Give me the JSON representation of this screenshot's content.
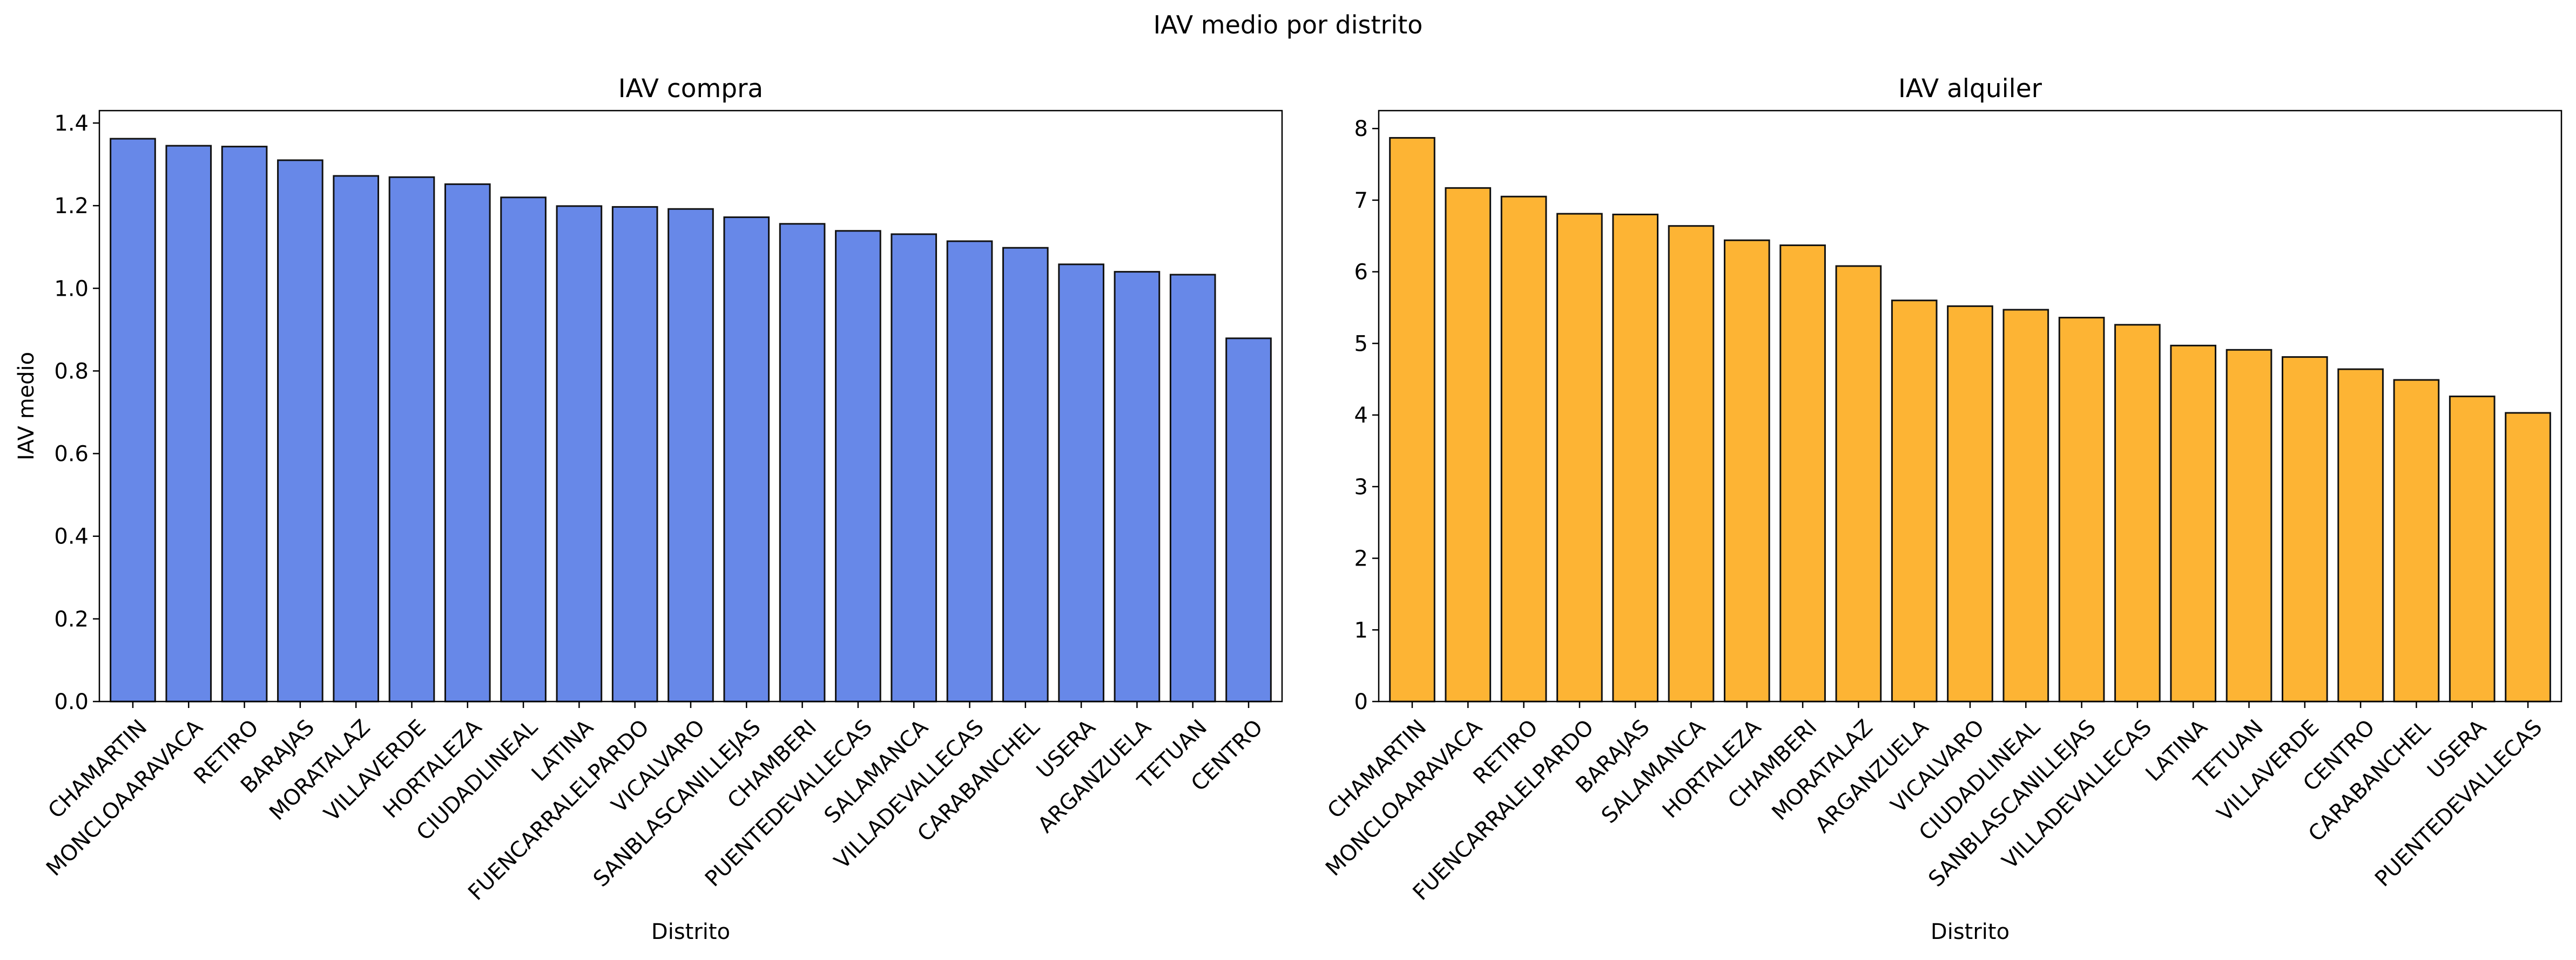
{
  "suptitle": "IAV medio por distrito",
  "colors": {
    "compra_bar": "#6788e8",
    "alquiler_bar": "#fdb434",
    "edge": "#111111",
    "axis": "#000000"
  },
  "chart_data": [
    {
      "type": "bar",
      "title": "IAV compra",
      "xlabel": "Distrito",
      "ylabel": "IAV medio",
      "ylim": [
        0,
        1.43
      ],
      "yticks": [
        0.0,
        0.2,
        0.4,
        0.6,
        0.8,
        1.0,
        1.2,
        1.4
      ],
      "ytick_labels": [
        "0.0",
        "0.2",
        "0.4",
        "0.6",
        "0.8",
        "1.0",
        "1.2",
        "1.4"
      ],
      "grid": false,
      "categories": [
        "CHAMARTIN",
        "MONCLOAARAVACA",
        "RETIRO",
        "BARAJAS",
        "MORATALAZ",
        "VILLAVERDE",
        "HORTALEZA",
        "CIUDADLINEAL",
        "LATINA",
        "FUENCARRALELPARDO",
        "VICALVARO",
        "SANBLASCANILLEJAS",
        "CHAMBERI",
        "PUENTEDEVALLECAS",
        "SALAMANCA",
        "VILLADEVALLECAS",
        "CARABANCHEL",
        "USERA",
        "ARGANZUELA",
        "TETUAN",
        "CENTRO"
      ],
      "values": [
        1.362,
        1.345,
        1.343,
        1.31,
        1.272,
        1.269,
        1.252,
        1.22,
        1.199,
        1.197,
        1.192,
        1.172,
        1.156,
        1.139,
        1.131,
        1.114,
        1.098,
        1.058,
        1.04,
        1.033,
        0.879
      ]
    },
    {
      "type": "bar",
      "title": "IAV alquiler",
      "xlabel": "Distrito",
      "ylabel": "",
      "ylim": [
        0,
        8.25
      ],
      "yticks": [
        0,
        1,
        2,
        3,
        4,
        5,
        6,
        7,
        8
      ],
      "ytick_labels": [
        "0",
        "1",
        "2",
        "3",
        "4",
        "5",
        "6",
        "7",
        "8"
      ],
      "grid": false,
      "categories": [
        "CHAMARTIN",
        "MONCLOAARAVACA",
        "RETIRO",
        "FUENCARRALELPARDO",
        "BARAJAS",
        "SALAMANCA",
        "HORTALEZA",
        "CHAMBERI",
        "MORATALAZ",
        "ARGANZUELA",
        "VICALVARO",
        "CIUDADLINEAL",
        "SANBLASCANILLEJAS",
        "VILLADEVALLECAS",
        "LATINA",
        "TETUAN",
        "VILLAVERDE",
        "CENTRO",
        "CARABANCHEL",
        "USERA",
        "PUENTEDEVALLECAS"
      ],
      "values": [
        7.87,
        7.17,
        7.05,
        6.81,
        6.8,
        6.64,
        6.44,
        6.37,
        6.08,
        5.6,
        5.52,
        5.47,
        5.36,
        5.26,
        4.97,
        4.91,
        4.81,
        4.64,
        4.49,
        4.26,
        4.03
      ]
    }
  ]
}
